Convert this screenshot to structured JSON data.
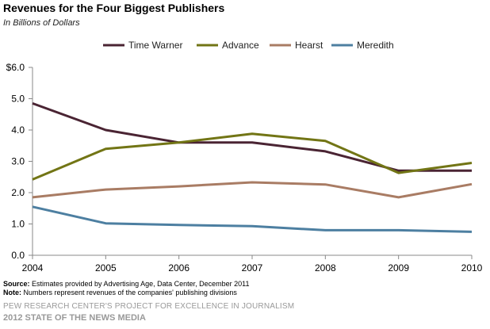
{
  "chart_data": {
    "type": "line",
    "title": "Revenues for the Four Biggest Publishers",
    "subtitle": "In Billions of Dollars",
    "x": [
      "2004",
      "2005",
      "2006",
      "2007",
      "2008",
      "2009",
      "2010"
    ],
    "ylim": [
      0,
      6
    ],
    "yticks": [
      "0.0",
      "1.0",
      "2.0",
      "3.0",
      "4.0",
      "5.0",
      "$6.0"
    ],
    "grid": false,
    "legend_position": "top",
    "series": [
      {
        "name": "Time Warner",
        "color": "#4a2433",
        "values": [
          4.85,
          4.0,
          3.6,
          3.6,
          3.32,
          2.7,
          2.7
        ]
      },
      {
        "name": "Advance",
        "color": "#727515",
        "values": [
          2.42,
          3.4,
          3.6,
          3.88,
          3.65,
          2.63,
          2.95
        ]
      },
      {
        "name": "Hearst",
        "color": "#a97c64",
        "values": [
          1.85,
          2.1,
          2.2,
          2.33,
          2.26,
          1.85,
          2.27
        ]
      },
      {
        "name": "Meredith",
        "color": "#4d7fa1",
        "values": [
          1.55,
          1.02,
          0.97,
          0.93,
          0.8,
          0.8,
          0.75
        ]
      }
    ]
  },
  "footer": {
    "source_label": "Source:",
    "source_text": " Estimates provided by Advertising Age, Data Center, December 2011",
    "note_label": "Note:",
    "note_text": " Numbers represent revenues of the companies' publishing divisions",
    "credit_line1": "PEW RESEARCH CENTER'S PROJECT FOR EXCELLENCE IN JOURNALISM",
    "credit_line2": "2012 STATE OF THE NEWS MEDIA"
  }
}
